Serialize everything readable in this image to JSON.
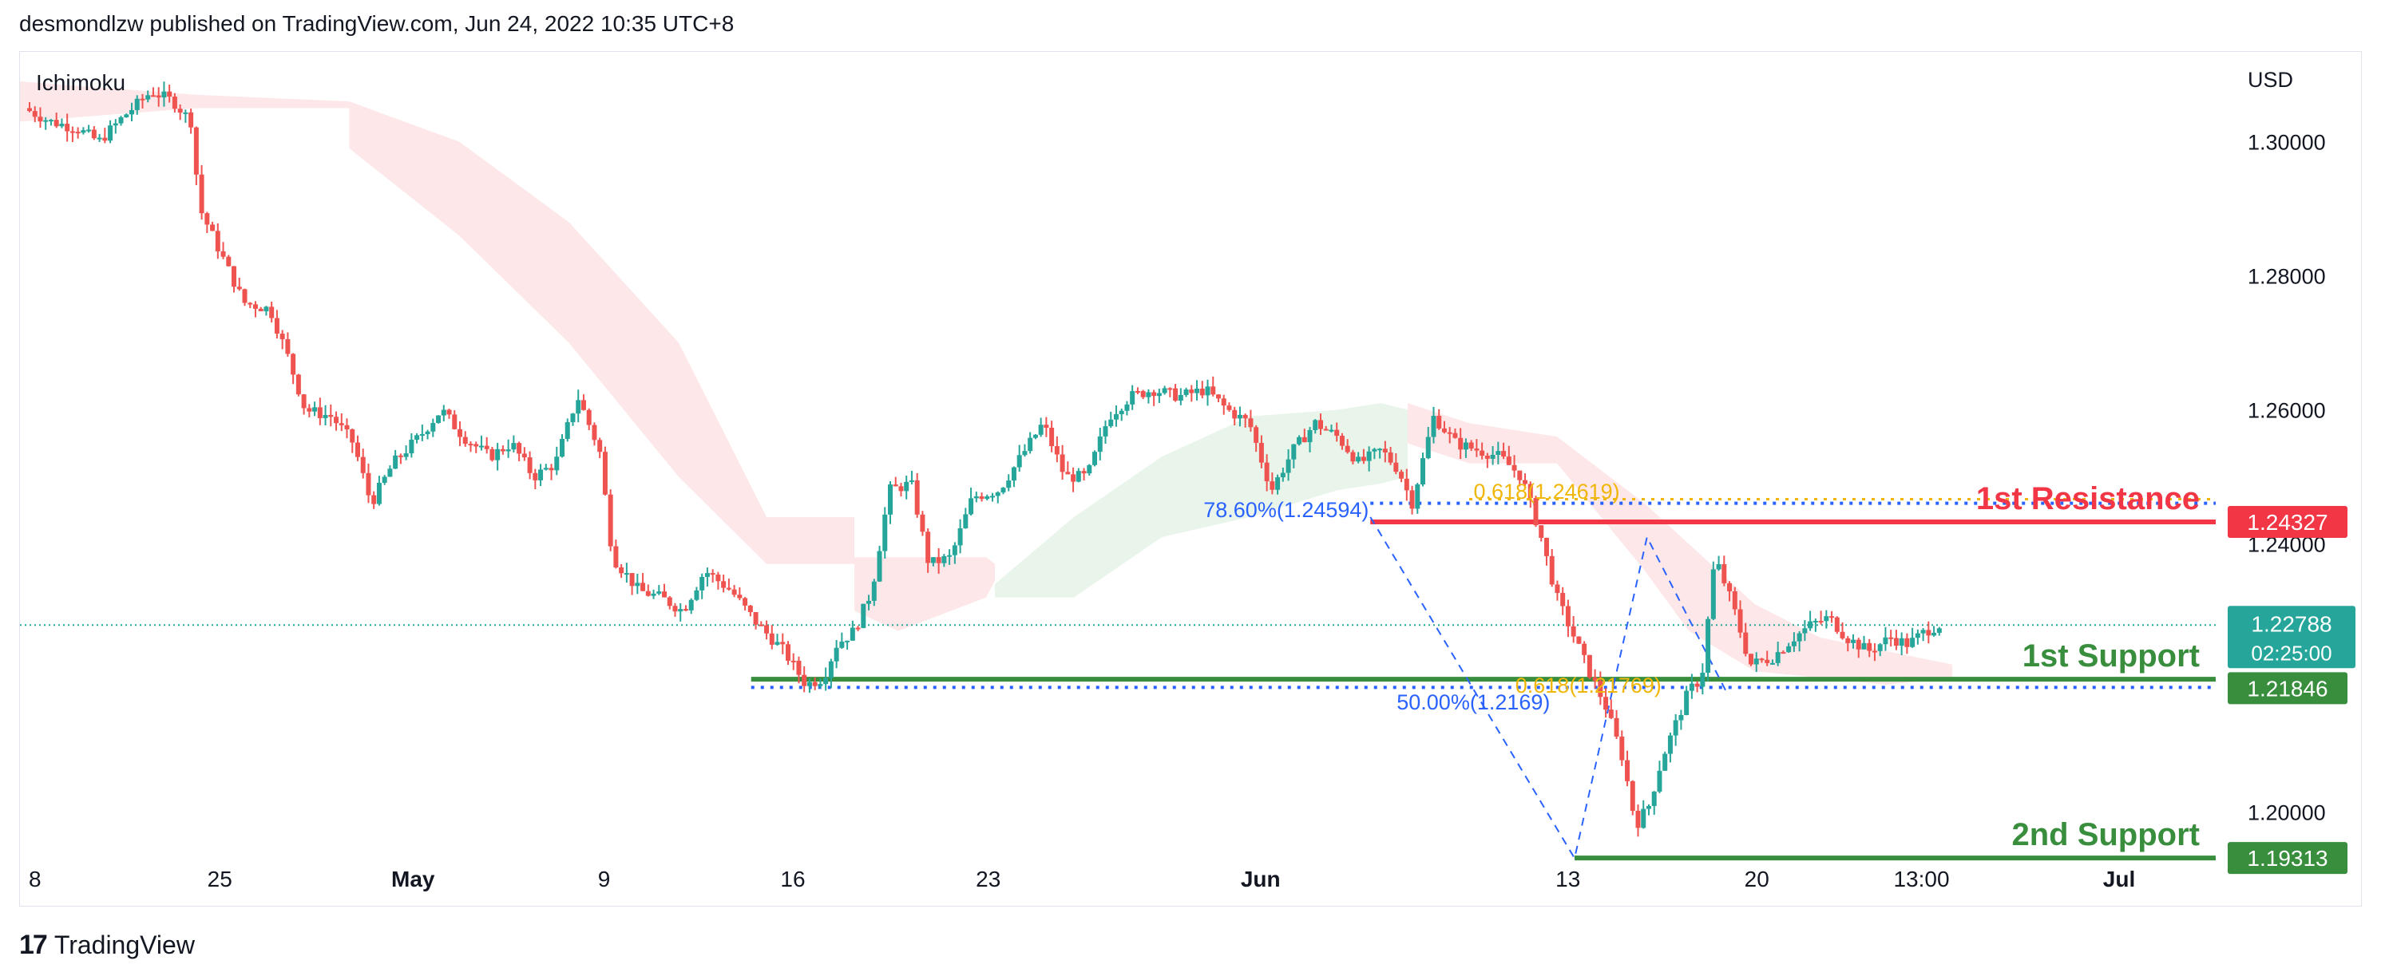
{
  "header": {
    "text": "desmondlzw published on TradingView.com, Jun 24, 2022 10:35 UTC+8"
  },
  "footer": {
    "logo": "17",
    "brand": "TradingView"
  },
  "chart_data": {
    "type": "candlestick",
    "indicator": "Ichimoku",
    "currency_label": "USD",
    "ylim": [
      1.186,
      1.3134
    ],
    "y_ticks": [
      {
        "value": 1.3,
        "label": "1.30000"
      },
      {
        "value": 1.28,
        "label": "1.28000"
      },
      {
        "value": 1.26,
        "label": "1.26000"
      },
      {
        "value": 1.24,
        "label": "1.24000"
      },
      {
        "value": 1.2,
        "label": "1.20000"
      }
    ],
    "x_ticks": [
      {
        "label": "8",
        "bold": false,
        "frac": 0.004
      },
      {
        "label": "25",
        "bold": false,
        "frac": 0.091
      },
      {
        "label": "May",
        "bold": true,
        "frac": 0.179
      },
      {
        "label": "9",
        "bold": false,
        "frac": 0.266
      },
      {
        "label": "16",
        "bold": false,
        "frac": 0.352
      },
      {
        "label": "23",
        "bold": false,
        "frac": 0.441
      },
      {
        "label": "Jun",
        "bold": true,
        "frac": 0.565
      },
      {
        "label": "13",
        "bold": false,
        "frac": 0.705
      },
      {
        "label": "20",
        "bold": false,
        "frac": 0.791
      },
      {
        "label": "13:00",
        "bold": false,
        "frac": 0.866
      },
      {
        "label": "Jul",
        "bold": true,
        "frac": 0.956
      }
    ],
    "price_path": [
      [
        0.0,
        1.305
      ],
      [
        0.012,
        1.303
      ],
      [
        0.024,
        1.302
      ],
      [
        0.034,
        1.3
      ],
      [
        0.046,
        1.304
      ],
      [
        0.058,
        1.3075
      ],
      [
        0.068,
        1.306
      ],
      [
        0.076,
        1.303
      ],
      [
        0.08,
        1.29
      ],
      [
        0.09,
        1.283
      ],
      [
        0.1,
        1.276
      ],
      [
        0.112,
        1.275
      ],
      [
        0.12,
        1.268
      ],
      [
        0.128,
        1.26
      ],
      [
        0.14,
        1.259
      ],
      [
        0.15,
        1.255
      ],
      [
        0.158,
        1.246
      ],
      [
        0.168,
        1.252
      ],
      [
        0.18,
        1.256
      ],
      [
        0.19,
        1.26
      ],
      [
        0.2,
        1.256
      ],
      [
        0.212,
        1.253
      ],
      [
        0.222,
        1.255
      ],
      [
        0.232,
        1.25
      ],
      [
        0.242,
        1.252
      ],
      [
        0.252,
        1.262
      ],
      [
        0.262,
        1.254
      ],
      [
        0.268,
        1.238
      ],
      [
        0.28,
        1.233
      ],
      [
        0.29,
        1.232
      ],
      [
        0.3,
        1.23
      ],
      [
        0.31,
        1.236
      ],
      [
        0.322,
        1.233
      ],
      [
        0.334,
        1.228
      ],
      [
        0.346,
        1.224
      ],
      [
        0.356,
        1.219
      ],
      [
        0.364,
        1.22
      ],
      [
        0.37,
        1.225
      ],
      [
        0.378,
        1.227
      ],
      [
        0.386,
        1.233
      ],
      [
        0.394,
        1.248
      ],
      [
        0.404,
        1.249
      ],
      [
        0.412,
        1.237
      ],
      [
        0.422,
        1.238
      ],
      [
        0.432,
        1.247
      ],
      [
        0.444,
        1.248
      ],
      [
        0.452,
        1.252
      ],
      [
        0.464,
        1.258
      ],
      [
        0.474,
        1.25
      ],
      [
        0.484,
        1.25
      ],
      [
        0.494,
        1.259
      ],
      [
        0.504,
        1.262
      ],
      [
        0.514,
        1.263
      ],
      [
        0.526,
        1.262
      ],
      [
        0.538,
        1.263
      ],
      [
        0.548,
        1.26
      ],
      [
        0.558,
        1.258
      ],
      [
        0.568,
        1.248
      ],
      [
        0.578,
        1.254
      ],
      [
        0.588,
        1.258
      ],
      [
        0.598,
        1.256
      ],
      [
        0.608,
        1.252
      ],
      [
        0.618,
        1.254
      ],
      [
        0.626,
        1.251
      ],
      [
        0.632,
        1.246
      ],
      [
        0.642,
        1.259
      ],
      [
        0.652,
        1.255
      ],
      [
        0.662,
        1.254
      ],
      [
        0.672,
        1.253
      ],
      [
        0.682,
        1.25
      ],
      [
        0.69,
        1.242
      ],
      [
        0.698,
        1.232
      ],
      [
        0.706,
        1.226
      ],
      [
        0.714,
        1.22
      ],
      [
        0.72,
        1.216
      ],
      [
        0.728,
        1.208
      ],
      [
        0.734,
        1.198
      ],
      [
        0.74,
        1.201
      ],
      [
        0.746,
        1.208
      ],
      [
        0.752,
        1.213
      ],
      [
        0.758,
        1.218
      ],
      [
        0.764,
        1.22
      ],
      [
        0.77,
        1.238
      ],
      [
        0.778,
        1.231
      ],
      [
        0.786,
        1.222
      ],
      [
        0.796,
        1.223
      ],
      [
        0.806,
        1.226
      ],
      [
        0.814,
        1.228
      ],
      [
        0.822,
        1.229
      ],
      [
        0.83,
        1.226
      ],
      [
        0.84,
        1.224
      ],
      [
        0.85,
        1.226
      ],
      [
        0.858,
        1.225
      ],
      [
        0.866,
        1.227
      ],
      [
        0.872,
        1.2279
      ]
    ],
    "cloud_segments": [
      {
        "color": "red",
        "points": [
          [
            0.0,
            1.309,
            1.303
          ],
          [
            0.08,
            1.307,
            1.305
          ],
          [
            0.15,
            1.306,
            1.305
          ],
          [
            0.15,
            1.306,
            1.299
          ],
          [
            0.2,
            1.3,
            1.286
          ],
          [
            0.25,
            1.288,
            1.27
          ],
          [
            0.3,
            1.27,
            1.25
          ],
          [
            0.34,
            1.244,
            1.237
          ],
          [
            0.38,
            1.244,
            1.237
          ]
        ]
      },
      {
        "color": "red",
        "points": [
          [
            0.38,
            1.238,
            1.23
          ],
          [
            0.4,
            1.238,
            1.227
          ],
          [
            0.44,
            1.238,
            1.232
          ],
          [
            0.444,
            1.237,
            1.2345
          ]
        ]
      },
      {
        "color": "green",
        "points": [
          [
            0.444,
            1.234,
            1.232
          ],
          [
            0.48,
            1.244,
            1.232
          ],
          [
            0.52,
            1.253,
            1.241
          ],
          [
            0.56,
            1.259,
            1.244
          ],
          [
            0.6,
            1.26,
            1.248
          ],
          [
            0.62,
            1.261,
            1.249
          ],
          [
            0.632,
            1.26,
            1.25
          ]
        ]
      },
      {
        "color": "red",
        "points": [
          [
            0.632,
            1.261,
            1.255
          ],
          [
            0.66,
            1.258,
            1.252
          ],
          [
            0.7,
            1.256,
            1.252
          ],
          [
            0.74,
            1.246,
            1.236
          ],
          [
            0.76,
            1.24,
            1.227
          ],
          [
            0.79,
            1.231,
            1.221
          ],
          [
            0.82,
            1.226,
            1.22
          ],
          [
            0.85,
            1.224,
            1.219
          ],
          [
            0.88,
            1.222,
            1.22
          ]
        ]
      }
    ],
    "zigzag": [
      [
        0.615,
        1.244
      ],
      [
        0.708,
        1.1931
      ],
      [
        0.741,
        1.241
      ],
      [
        0.777,
        1.218
      ]
    ],
    "last_price_line": 1.22788,
    "levels": [
      {
        "name": "1st Resistance",
        "value": 1.24327,
        "label": "1.24327",
        "color": "#f23645",
        "x_start": 0.615,
        "fib_line": 1.24594
      },
      {
        "name": "1st Support",
        "value": 1.21846,
        "label": "1.21846",
        "color": "#388e3c",
        "x_start": 0.333,
        "line_value": 1.2198,
        "fib_line": 1.21846
      },
      {
        "name": "2nd Support",
        "value": 1.19313,
        "label": "1.19313",
        "color": "#388e3c",
        "x_start": 0.708,
        "line_value": 1.19313
      }
    ],
    "fib_labels": [
      {
        "text": "0.618(1.24619)",
        "color": "#f0b70a",
        "x": 0.662,
        "y": 1.2467
      },
      {
        "text": "78.60%(1.24594)",
        "color": "#2962ff",
        "x": 0.539,
        "y": 1.244
      },
      {
        "text": "0.618(1.21769)",
        "color": "#f0b70a",
        "x": 0.681,
        "y": 1.2178
      },
      {
        "text": "50.00%(1.2169)",
        "color": "#2962ff",
        "x": 0.627,
        "y": 1.2153
      }
    ],
    "current_price": {
      "label": "1.22788",
      "countdown": "02:25:00",
      "color": "#26a69a"
    }
  }
}
